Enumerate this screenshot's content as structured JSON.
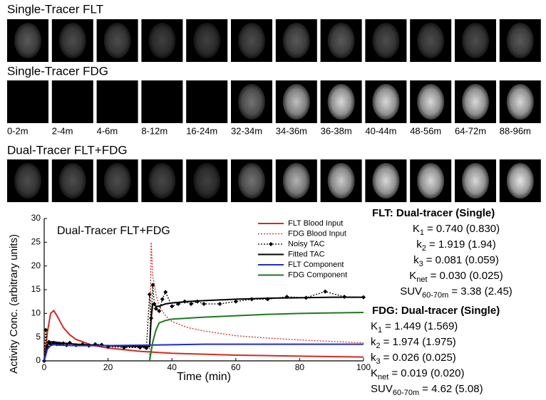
{
  "strips": [
    {
      "title": "Single-Tracer FLT"
    },
    {
      "title": "Single-Tracer FDG"
    },
    {
      "title": "Dual-Tracer FLT+FDG"
    }
  ],
  "time_labels": [
    "0-2m",
    "2-4m",
    "4-6m",
    "8-12m",
    "16-24m",
    "32-34m",
    "34-36m",
    "36-38m",
    "40-44m",
    "48-56m",
    "64-72m",
    "88-96m"
  ],
  "chart_data": {
    "type": "line",
    "annotation": "Dual-Tracer FLT+FDG",
    "x_label": "Time (min)",
    "y_label": "Activity Conc. (arbitrary units)",
    "xlim": [
      0,
      100
    ],
    "ylim": [
      0,
      30
    ],
    "xticks": [
      0,
      20,
      40,
      60,
      80,
      100
    ],
    "yticks": [
      0,
      5,
      10,
      15,
      20,
      25,
      30
    ],
    "grid": false,
    "legend": "upper right",
    "series": [
      {
        "name": "FLT Blood Input",
        "color": "#d42a1e",
        "style": "solid",
        "x": [
          0,
          1,
          2,
          3,
          4,
          6,
          8,
          10,
          15,
          20,
          30,
          40,
          50,
          60,
          70,
          80,
          90,
          100
        ],
        "values": [
          0,
          6,
          10,
          10.6,
          9.5,
          7,
          5.5,
          4.5,
          3.3,
          2.7,
          2,
          1.6,
          1.4,
          1.2,
          1.1,
          1,
          0.9,
          0.8
        ]
      },
      {
        "name": "FDG Blood Input",
        "color": "#d42a1e",
        "style": "dotted",
        "x": [
          33,
          33.5,
          34,
          35,
          36,
          38,
          40,
          45,
          50,
          60,
          70,
          80,
          90,
          100
        ],
        "values": [
          0,
          25,
          18,
          14,
          11.5,
          9.5,
          8.3,
          7,
          6.3,
          5.3,
          4.8,
          4.4,
          4.1,
          3.8
        ]
      },
      {
        "name": "Noisy TAC",
        "color": "#000000",
        "style": "dotted",
        "marker": "diamond",
        "x": [
          0,
          0.5,
          1,
          1.5,
          2,
          3,
          4,
          5,
          6,
          7,
          8,
          10,
          12,
          14,
          16,
          18,
          20,
          25,
          30,
          32,
          33,
          33.5,
          34,
          34.5,
          35,
          36,
          37,
          38,
          40,
          42,
          44,
          46,
          48,
          50,
          55,
          60,
          65,
          70,
          76,
          82,
          88,
          94,
          100
        ],
        "values": [
          0,
          6.5,
          3,
          4,
          3.5,
          3.8,
          3.5,
          3.6,
          3.7,
          3.3,
          3.8,
          3.3,
          3.5,
          3.2,
          3.5,
          3.4,
          3,
          2.8,
          2.8,
          2.7,
          14,
          9,
          16,
          12,
          11,
          10.5,
          13,
          14.5,
          11.5,
          12,
          12.5,
          12,
          12.5,
          12,
          12,
          12.5,
          13,
          13,
          13.5,
          13.3,
          14.6,
          13.5,
          13.4
        ]
      },
      {
        "name": "Fitted TAC",
        "color": "#000000",
        "style": "solid",
        "x": [
          0,
          1,
          2,
          3,
          5,
          10,
          20,
          30,
          33,
          33.5,
          34,
          35,
          36,
          38,
          40,
          45,
          50,
          60,
          70,
          80,
          90,
          100
        ],
        "values": [
          0,
          3.5,
          4,
          4,
          3.8,
          3.5,
          3.2,
          3,
          3,
          9,
          12,
          11.5,
          11.5,
          12,
          12.2,
          12.5,
          12.7,
          13,
          13.2,
          13.3,
          13.4,
          13.4
        ]
      },
      {
        "name": "FLT Component",
        "color": "#1f2bd6",
        "style": "solid",
        "x": [
          0,
          1,
          2,
          3,
          5,
          10,
          20,
          30,
          40,
          50,
          60,
          70,
          80,
          90,
          100
        ],
        "values": [
          0,
          2.5,
          3.2,
          3.4,
          3.3,
          3.2,
          3.2,
          3.3,
          3.4,
          3.5,
          3.5,
          3.5,
          3.5,
          3.5,
          3.5
        ]
      },
      {
        "name": "FDG Component",
        "color": "#1e7a1e",
        "style": "solid",
        "x": [
          33,
          34,
          35,
          36,
          38,
          40,
          45,
          50,
          60,
          70,
          80,
          90,
          100
        ],
        "values": [
          0,
          4,
          6.5,
          8,
          8.5,
          8.8,
          9,
          9.2,
          9.5,
          9.8,
          10,
          10.1,
          10.2
        ]
      }
    ]
  },
  "parameters": [
    {
      "title": "FLT: Dual-tracer (Single)",
      "rows": [
        {
          "symbol": "K",
          "sub": "1",
          "text": "= 0.740 (0.830)"
        },
        {
          "symbol": "k",
          "sub": "2",
          "text": "= 1.919 (1.94)"
        },
        {
          "symbol": "k",
          "sub": "3",
          "text": "= 0.081 (0.059)"
        },
        {
          "symbol": "K",
          "sub": "net",
          "text": "= 0.030 (0.025)"
        },
        {
          "symbol": "SUV",
          "sub": "60-70m",
          "text": "= 3.38 (2.45)"
        }
      ]
    },
    {
      "title": "FDG: Dual-tracer (Single)",
      "rows": [
        {
          "symbol": "K",
          "sub": "1",
          "text": "= 1.449 (1.569)"
        },
        {
          "symbol": "k",
          "sub": "2",
          "text": "= 1.974 (1.975)"
        },
        {
          "symbol": "k",
          "sub": "3",
          "text": "= 0.026 (0.025)"
        },
        {
          "symbol": "K",
          "sub": "net",
          "text": "= 0.019 (0.020)"
        },
        {
          "symbol": "SUV",
          "sub": "60-70m",
          "text": "= 4.62 (5.08)"
        }
      ]
    }
  ]
}
